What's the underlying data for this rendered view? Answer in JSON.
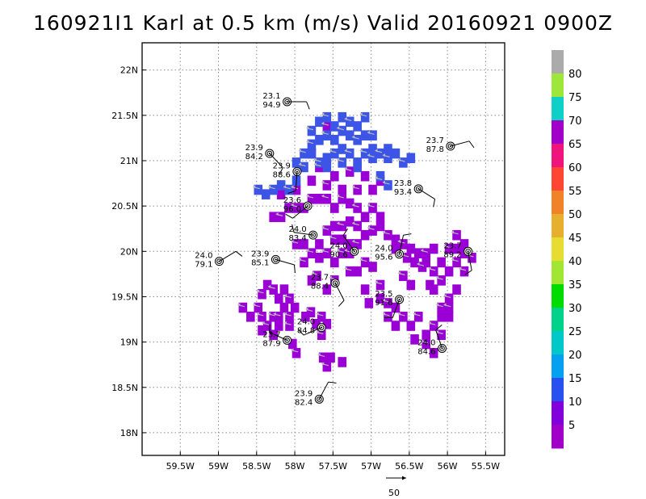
{
  "title": "160921I1 Karl at 0.5 km (m/s) Valid 20160921 0900Z",
  "map": {
    "lon_range": [
      -60,
      -55.25
    ],
    "lat_range": [
      17.75,
      22.3
    ],
    "lon_ticks": [
      {
        "lon": -59.5,
        "label": "59.5W"
      },
      {
        "lon": -59,
        "label": "59W"
      },
      {
        "lon": -58.5,
        "label": "58.5W"
      },
      {
        "lon": -58,
        "label": "58W"
      },
      {
        "lon": -57.5,
        "label": "57.5W"
      },
      {
        "lon": -57,
        "label": "57W"
      },
      {
        "lon": -56.5,
        "label": "56.5W"
      },
      {
        "lon": -56,
        "label": "56W"
      },
      {
        "lon": -55.5,
        "label": "55.5W"
      }
    ],
    "lat_ticks": [
      {
        "lat": 22,
        "label": "22N"
      },
      {
        "lat": 21.5,
        "label": "21.5N"
      },
      {
        "lat": 21,
        "label": "21N"
      },
      {
        "lat": 20.5,
        "label": "20.5N"
      },
      {
        "lat": 20,
        "label": "20N"
      },
      {
        "lat": 19.5,
        "label": "19.5N"
      },
      {
        "lat": 19,
        "label": "19N"
      },
      {
        "lat": 18.5,
        "label": "18.5N"
      },
      {
        "lat": 18,
        "label": "18N"
      }
    ],
    "grid": "dotted"
  },
  "colorbar": {
    "labels": [
      "80",
      "75",
      "70",
      "65",
      "60",
      "55",
      "50",
      "45",
      "40",
      "35",
      "30",
      "25",
      "20",
      "15",
      "10",
      "5"
    ],
    "colors": [
      "#ababab",
      "#9ee639",
      "#0fd0c8",
      "#a000c8",
      "#f0147d",
      "#ff4632",
      "#f08228",
      "#e6af2d",
      "#e6dc32",
      "#a0e632",
      "#00dc00",
      "#00d28c",
      "#00c8c8",
      "#05a0f0",
      "#2850f0",
      "#8200dc",
      "#a000c8"
    ]
  },
  "wind_field": {
    "cell_deg": 0.07,
    "colors": {
      "5": "#9a00d6",
      "10": "#3c55e6"
    },
    "speed5_cells": [
      [
        -58.3,
        19.3
      ],
      [
        -58.3,
        19.1
      ],
      [
        -58.38,
        19.2
      ],
      [
        -58.23,
        19.5
      ],
      [
        -58.23,
        19.3
      ],
      [
        -58.16,
        19.4
      ],
      [
        -58.09,
        19.5
      ],
      [
        -58.16,
        19.6
      ],
      [
        -58.09,
        19.3
      ],
      [
        -58.02,
        19.4
      ],
      [
        -58.45,
        19.3
      ],
      [
        -58.23,
        19.2
      ],
      [
        -58.09,
        19.2
      ],
      [
        -57.88,
        19.3
      ],
      [
        -57.81,
        19.35
      ],
      [
        -57.74,
        19.22
      ],
      [
        -57.67,
        19.3
      ],
      [
        -57.6,
        19.22
      ],
      [
        -57.67,
        19.1
      ],
      [
        -57.8,
        19.7
      ],
      [
        -57.73,
        19.75
      ],
      [
        -58.3,
        20.4
      ],
      [
        -58.2,
        20.4
      ],
      [
        -58.1,
        20.5
      ],
      [
        -58.0,
        20.5
      ],
      [
        -57.9,
        20.5
      ],
      [
        -57.8,
        20.6
      ],
      [
        -57.7,
        20.6
      ],
      [
        -57.6,
        20.6
      ],
      [
        -57.5,
        20.5
      ],
      [
        -57.4,
        20.6
      ],
      [
        -57.3,
        20.55
      ],
      [
        -57.2,
        20.5
      ],
      [
        -57.1,
        20.4
      ],
      [
        -57.0,
        20.5
      ],
      [
        -56.9,
        20.4
      ],
      [
        -58.0,
        20.1
      ],
      [
        -57.9,
        20.1
      ],
      [
        -57.8,
        20.0
      ],
      [
        -57.7,
        20.1
      ],
      [
        -57.6,
        20.0
      ],
      [
        -57.5,
        19.9
      ],
      [
        -57.4,
        20.0
      ],
      [
        -57.3,
        20.1
      ],
      [
        -57.2,
        20.1
      ],
      [
        -57.1,
        20.2
      ],
      [
        -57.0,
        20.25
      ],
      [
        -56.9,
        20.3
      ],
      [
        -56.8,
        20.2
      ],
      [
        -56.7,
        20.15
      ],
      [
        -56.6,
        20.1
      ],
      [
        -56.5,
        20.05
      ],
      [
        -57.3,
        19.8
      ],
      [
        -57.2,
        19.8
      ],
      [
        -57.1,
        19.9
      ],
      [
        -57.0,
        19.85
      ],
      [
        -57.4,
        20.3
      ],
      [
        -57.3,
        20.35
      ],
      [
        -57.2,
        20.3
      ],
      [
        -57.5,
        20.3
      ],
      [
        -57.6,
        20.25
      ],
      [
        -56.9,
        19.5
      ],
      [
        -56.8,
        19.45
      ],
      [
        -56.7,
        19.4
      ],
      [
        -56.8,
        19.3
      ],
      [
        -56.7,
        19.2
      ],
      [
        -56.6,
        19.3
      ],
      [
        -56.5,
        19.2
      ],
      [
        -56.4,
        19.3
      ],
      [
        -56.3,
        19.1
      ],
      [
        -56.2,
        19.2
      ],
      [
        -56.1,
        19.3
      ],
      [
        -56.0,
        19.4
      ],
      [
        -56.45,
        19.05
      ],
      [
        -56.3,
        19.0
      ],
      [
        -56.2,
        18.9
      ],
      [
        -56.1,
        19.1
      ],
      [
        -56.2,
        19.6
      ],
      [
        -56.1,
        19.7
      ],
      [
        -56.0,
        19.8
      ],
      [
        -55.9,
        19.9
      ],
      [
        -55.8,
        20.0
      ],
      [
        -55.7,
        19.95
      ],
      [
        -56.3,
        19.9
      ],
      [
        -56.2,
        19.8
      ],
      [
        -56.1,
        19.9
      ],
      [
        -56.0,
        20.05
      ],
      [
        -55.9,
        20.05
      ],
      [
        -55.8,
        19.8
      ],
      [
        -55.9,
        19.6
      ],
      [
        -56.0,
        19.5
      ],
      [
        -55.8,
        20.1
      ],
      [
        -55.9,
        20.2
      ],
      [
        -56.0,
        19.3
      ],
      [
        -56.1,
        19.4
      ],
      [
        -56.4,
        20.0
      ],
      [
        -56.3,
        20.0
      ],
      [
        -56.2,
        20.05
      ],
      [
        -56.35,
        19.85
      ],
      [
        -56.25,
        19.65
      ],
      [
        -57.9,
        19.9
      ],
      [
        -57.7,
        19.95
      ],
      [
        -57.5,
        20.15
      ],
      [
        -57.4,
        20.15
      ],
      [
        -57.3,
        20.0
      ],
      [
        -57.6,
        19.6
      ],
      [
        -57.5,
        19.7
      ],
      [
        -57.1,
        19.6
      ],
      [
        -56.9,
        19.65
      ],
      [
        -57.05,
        19.45
      ],
      [
        -57.6,
        21.4
      ],
      [
        -57.8,
        21.1
      ],
      [
        -57.7,
        20.95
      ],
      [
        -57.5,
        20.85
      ],
      [
        -57.3,
        20.9
      ],
      [
        -57.1,
        20.85
      ],
      [
        -56.9,
        20.8
      ],
      [
        -57.0,
        20.7
      ],
      [
        -57.2,
        20.7
      ],
      [
        -57.4,
        20.7
      ],
      [
        -57.6,
        20.75
      ],
      [
        -57.8,
        20.8
      ],
      [
        -58.0,
        20.7
      ],
      [
        -58.2,
        20.65
      ],
      [
        -58.0,
        18.9
      ],
      [
        -58.05,
        19.0
      ],
      [
        -57.65,
        18.85
      ],
      [
        -57.4,
        18.8
      ],
      [
        -58.7,
        19.4
      ],
      [
        -58.6,
        19.3
      ],
      [
        -58.5,
        19.4
      ],
      [
        -58.45,
        19.15
      ],
      [
        -58.45,
        19.55
      ],
      [
        -58.38,
        19.65
      ],
      [
        -58.3,
        19.6
      ],
      [
        -56.7,
        20.05
      ],
      [
        -56.55,
        19.95
      ],
      [
        -56.45,
        19.9
      ],
      [
        -56.6,
        19.75
      ],
      [
        -56.5,
        19.65
      ],
      [
        -57.6,
        18.75
      ],
      [
        -57.55,
        18.85
      ]
    ],
    "speed10_cells": [
      [
        -57.9,
        21.1
      ],
      [
        -57.8,
        21.1
      ],
      [
        -57.7,
        21.0
      ],
      [
        -57.6,
        21.05
      ],
      [
        -57.5,
        21.1
      ],
      [
        -57.4,
        21.15
      ],
      [
        -57.3,
        21.1
      ],
      [
        -57.2,
        21.0
      ],
      [
        -57.1,
        21.1
      ],
      [
        -57.0,
        21.15
      ],
      [
        -56.9,
        21.1
      ],
      [
        -56.8,
        21.15
      ],
      [
        -57.8,
        21.2
      ],
      [
        -57.7,
        21.25
      ],
      [
        -57.6,
        21.3
      ],
      [
        -57.5,
        21.25
      ],
      [
        -57.4,
        21.35
      ],
      [
        -57.3,
        21.3
      ],
      [
        -57.2,
        21.25
      ],
      [
        -57.1,
        21.3
      ],
      [
        -57.0,
        21.3
      ],
      [
        -57.7,
        21.45
      ],
      [
        -57.6,
        21.5
      ],
      [
        -57.4,
        21.5
      ],
      [
        -57.3,
        21.45
      ],
      [
        -57.2,
        21.4
      ],
      [
        -57.1,
        21.5
      ],
      [
        -58.0,
        21.0
      ],
      [
        -57.9,
        20.95
      ],
      [
        -57.6,
        20.95
      ],
      [
        -57.4,
        21.0
      ],
      [
        -57.2,
        20.95
      ],
      [
        -56.8,
        21.05
      ],
      [
        -56.7,
        21.1
      ],
      [
        -56.6,
        21.0
      ],
      [
        -56.5,
        21.05
      ],
      [
        -58.3,
        20.7
      ],
      [
        -58.2,
        20.75
      ],
      [
        -58.1,
        20.7
      ],
      [
        -58.4,
        20.65
      ],
      [
        -58.5,
        20.7
      ],
      [
        -58.0,
        20.8
      ],
      [
        -56.8,
        20.75
      ],
      [
        -56.9,
        20.85
      ],
      [
        -57.8,
        21.35
      ],
      [
        -57.5,
        21.4
      ],
      [
        -57.0,
        21.05
      ]
    ],
    "arrow_note": "gray wind vectors"
  },
  "observations": [
    {
      "lon": -58.1,
      "lat": 21.65,
      "top": "23.1",
      "bottom": "94.9"
    },
    {
      "lon": -58.33,
      "lat": 21.08,
      "top": "23.9",
      "bottom": "84.2"
    },
    {
      "lon": -57.97,
      "lat": 20.88,
      "top": "23.9",
      "bottom": "88.6"
    },
    {
      "lon": -57.83,
      "lat": 20.5,
      "top": "23.6",
      "bottom": "96.0"
    },
    {
      "lon": -57.76,
      "lat": 20.18,
      "top": "24.0",
      "bottom": "83.4"
    },
    {
      "lon": -57.22,
      "lat": 20.0,
      "top": "24.0",
      "bottom": "90.6"
    },
    {
      "lon": -56.63,
      "lat": 19.97,
      "top": "24.0",
      "bottom": "95.6"
    },
    {
      "lon": -58.99,
      "lat": 19.89,
      "top": "24.0",
      "bottom": "79.1"
    },
    {
      "lon": -58.25,
      "lat": 19.91,
      "top": "23.9",
      "bottom": "85.1"
    },
    {
      "lon": -57.47,
      "lat": 19.65,
      "top": "23.7",
      "bottom": "88.4"
    },
    {
      "lon": -56.63,
      "lat": 19.47,
      "top": "23.5",
      "bottom": "91.6"
    },
    {
      "lon": -57.65,
      "lat": 19.16,
      "top": "24.0",
      "bottom": "84.8"
    },
    {
      "lon": -58.1,
      "lat": 19.02,
      "top": "23.7",
      "bottom": "87.9"
    },
    {
      "lon": -56.07,
      "lat": 18.93,
      "top": "24.0",
      "bottom": "84.6"
    },
    {
      "lon": -57.68,
      "lat": 18.37,
      "top": "23.9",
      "bottom": "82.4"
    },
    {
      "lon": -55.96,
      "lat": 21.16,
      "top": "23.7",
      "bottom": "87.8"
    },
    {
      "lon": -56.38,
      "lat": 20.69,
      "top": "23.8",
      "bottom": "93.4"
    },
    {
      "lon": -55.73,
      "lat": 20.0,
      "top": "23.7",
      "bottom": "89.2"
    }
  ],
  "reference_vector": {
    "label": "50"
  }
}
